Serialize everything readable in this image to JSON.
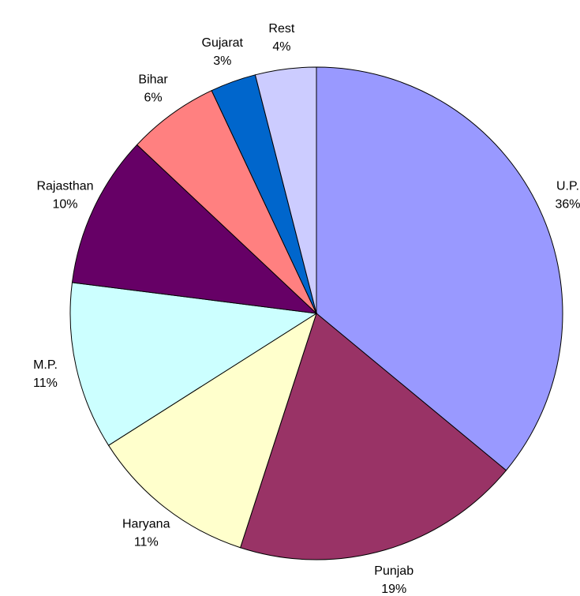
{
  "chart_data": {
    "type": "pie",
    "categories": [
      "U.P.",
      "Punjab",
      "Haryana",
      "M.P.",
      "Rajasthan",
      "Bihar",
      "Gujarat",
      "Rest"
    ],
    "values": [
      36,
      19,
      11,
      11,
      10,
      6,
      3,
      4
    ],
    "value_labels": [
      "36%",
      "19%",
      "11%",
      "11%",
      "10%",
      "6%",
      "3%",
      "4%"
    ],
    "colors": [
      "#9999ff",
      "#993366",
      "#ffffcc",
      "#ccffff",
      "#660066",
      "#ff8080",
      "#0066cc",
      "#ccccff"
    ]
  }
}
